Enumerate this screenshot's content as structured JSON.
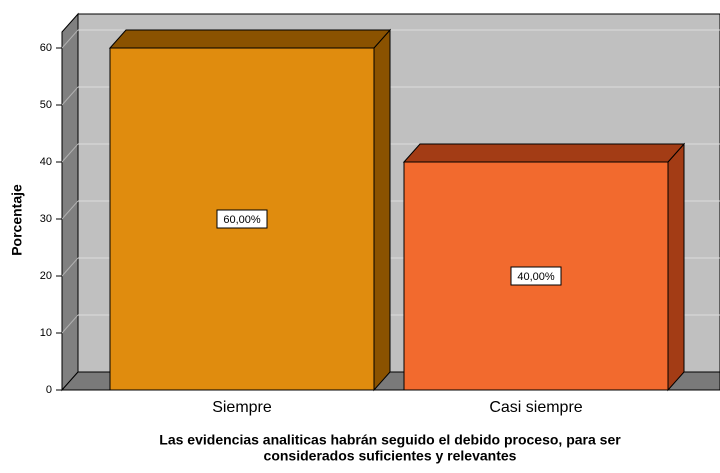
{
  "chart_data": {
    "type": "bar3d",
    "ylabel": "Porcentaje",
    "xlabel": [
      "Las evidencias analiticas habrán seguido el debido proceso, para ser",
      "considerados suficientes y relevantes"
    ],
    "categories": [
      "Siempre",
      "Casi siempre"
    ],
    "values": [
      60,
      40
    ],
    "value_labels": [
      "60,00%",
      "40,00%"
    ],
    "colors": [
      "#e08c0e",
      "#f26a2e"
    ],
    "side_colors": [
      "#8a5200",
      "#a33c15"
    ],
    "ylim": [
      0,
      60
    ],
    "yticks": [
      0,
      10,
      20,
      30,
      40,
      50,
      60
    ],
    "grid": true
  }
}
